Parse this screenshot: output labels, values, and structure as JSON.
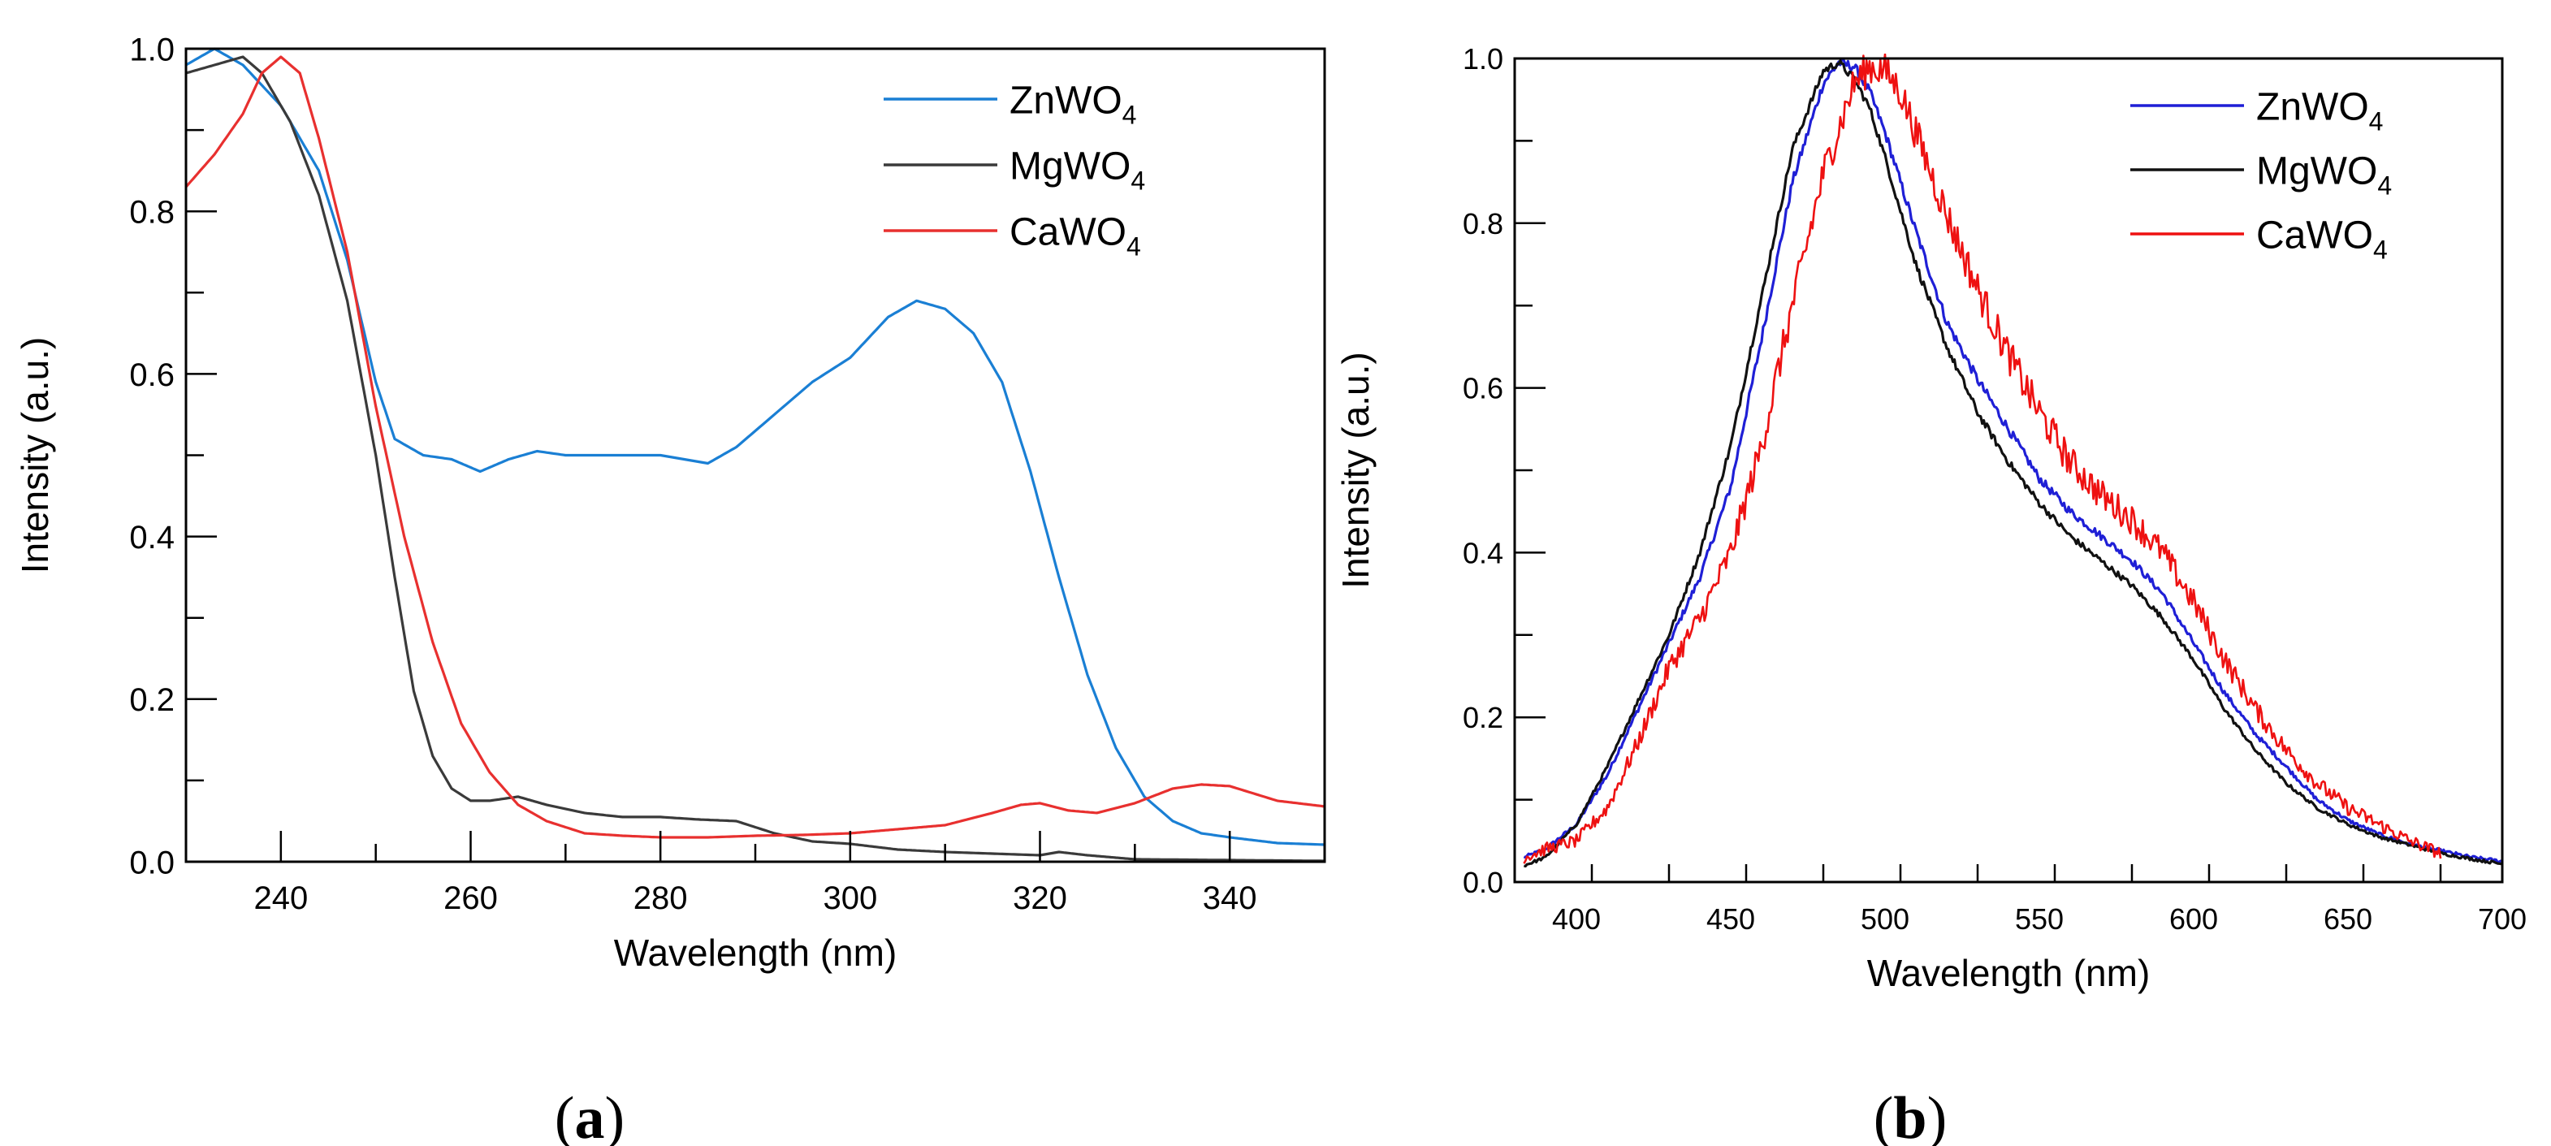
{
  "figure": {
    "panel_a_label": "a",
    "panel_b_label": "b"
  },
  "chart_data": [
    {
      "panel": "a",
      "type": "line",
      "title": "",
      "xlabel": "Wavelength (nm)",
      "ylabel": "Intensity (a.u.)",
      "xlim": [
        230,
        350
      ],
      "ylim": [
        0,
        1.0
      ],
      "xticks": [
        240,
        260,
        280,
        300,
        320,
        340
      ],
      "yticks": [
        0.0,
        0.2,
        0.4,
        0.6,
        0.8,
        1.0
      ],
      "tick_labels_x": [
        "240",
        "260",
        "280",
        "300",
        "320",
        "340"
      ],
      "tick_labels_y": [
        "0.0",
        "0.2",
        "0.4",
        "0.6",
        "0.8",
        "1.0"
      ],
      "grid": false,
      "legend_position": "top-right",
      "series": [
        {
          "name": "ZnWO4",
          "legend_main": "ZnWO",
          "legend_sub": "4",
          "color": "#1a7fd4",
          "x": [
            230,
            233,
            236,
            240,
            244,
            247,
            250,
            252,
            255,
            258,
            261,
            264,
            267,
            270,
            275,
            280,
            285,
            288,
            292,
            296,
            300,
            304,
            307,
            310,
            313,
            316,
            319,
            322,
            325,
            328,
            331,
            334,
            337,
            340,
            345,
            350
          ],
          "y": [
            0.98,
            1.0,
            0.98,
            0.93,
            0.85,
            0.74,
            0.59,
            0.52,
            0.5,
            0.495,
            0.48,
            0.495,
            0.505,
            0.5,
            0.5,
            0.5,
            0.49,
            0.51,
            0.55,
            0.59,
            0.62,
            0.67,
            0.69,
            0.68,
            0.65,
            0.59,
            0.48,
            0.35,
            0.23,
            0.14,
            0.08,
            0.05,
            0.035,
            0.03,
            0.023,
            0.021
          ]
        },
        {
          "name": "MgWO4",
          "legend_main": "MgWO",
          "legend_sub": "4",
          "color": "#3a3a3a",
          "x": [
            230,
            233,
            236,
            238,
            241,
            244,
            247,
            250,
            252,
            254,
            256,
            258,
            260,
            262,
            265,
            268,
            272,
            276,
            280,
            284,
            288,
            292,
            296,
            300,
            305,
            310,
            315,
            320,
            322,
            325,
            330,
            340,
            350
          ],
          "y": [
            0.97,
            0.98,
            0.99,
            0.97,
            0.91,
            0.82,
            0.69,
            0.5,
            0.35,
            0.21,
            0.13,
            0.09,
            0.075,
            0.075,
            0.08,
            0.07,
            0.06,
            0.055,
            0.055,
            0.052,
            0.05,
            0.035,
            0.025,
            0.022,
            0.015,
            0.012,
            0.01,
            0.008,
            0.012,
            0.008,
            0.003,
            0.002,
            0.001
          ]
        },
        {
          "name": "CaWO4",
          "legend_main": "CaWO",
          "legend_sub": "4",
          "color": "#e8302f",
          "x": [
            230,
            233,
            236,
            238,
            240,
            242,
            244,
            247,
            250,
            253,
            256,
            259,
            262,
            265,
            268,
            272,
            276,
            280,
            285,
            290,
            295,
            300,
            305,
            310,
            315,
            318,
            320,
            323,
            326,
            330,
            334,
            337,
            340,
            345,
            350
          ],
          "y": [
            0.83,
            0.87,
            0.92,
            0.97,
            0.99,
            0.97,
            0.89,
            0.75,
            0.56,
            0.4,
            0.27,
            0.17,
            0.11,
            0.07,
            0.05,
            0.035,
            0.032,
            0.03,
            0.03,
            0.032,
            0.033,
            0.035,
            0.04,
            0.045,
            0.06,
            0.07,
            0.072,
            0.063,
            0.06,
            0.072,
            0.09,
            0.095,
            0.093,
            0.075,
            0.068
          ]
        }
      ]
    },
    {
      "panel": "b",
      "type": "line",
      "title": "",
      "xlabel": "Wavelength (nm)",
      "ylabel": "Intensity (a.u.)",
      "xlim": [
        380,
        700
      ],
      "ylim": [
        0,
        1.0
      ],
      "xticks": [
        400,
        450,
        500,
        550,
        600,
        650,
        700
      ],
      "yticks": [
        0.0,
        0.2,
        0.4,
        0.6,
        0.8,
        1.0
      ],
      "tick_labels_x": [
        "400",
        "450",
        "500",
        "550",
        "600",
        "650",
        "700"
      ],
      "tick_labels_y": [
        "0.0",
        "0.2",
        "0.4",
        "0.6",
        "0.8",
        "1.0"
      ],
      "grid": false,
      "legend_position": "top-right",
      "series": [
        {
          "name": "ZnWO4",
          "legend_main": "ZnWO",
          "legend_sub": "4",
          "color": "#1f1fd6",
          "noise": 0.006,
          "x": [
            383,
            390,
            400,
            410,
            420,
            430,
            440,
            450,
            460,
            470,
            480,
            485,
            490,
            495,
            500,
            510,
            520,
            530,
            540,
            550,
            560,
            570,
            580,
            590,
            600,
            610,
            620,
            630,
            640,
            650,
            660,
            670,
            680,
            690,
            700
          ],
          "y": [
            0.03,
            0.04,
            0.07,
            0.13,
            0.21,
            0.29,
            0.37,
            0.48,
            0.66,
            0.85,
            0.97,
            0.995,
            0.99,
            0.96,
            0.91,
            0.79,
            0.68,
            0.61,
            0.55,
            0.49,
            0.45,
            0.42,
            0.39,
            0.35,
            0.29,
            0.23,
            0.18,
            0.14,
            0.1,
            0.075,
            0.058,
            0.046,
            0.038,
            0.03,
            0.025
          ]
        },
        {
          "name": "MgWO4",
          "legend_main": "MgWO",
          "legend_sub": "4",
          "color": "#111111",
          "noise": 0.005,
          "x": [
            383,
            390,
            400,
            410,
            420,
            430,
            440,
            450,
            460,
            470,
            480,
            485,
            490,
            495,
            500,
            510,
            520,
            530,
            540,
            550,
            560,
            570,
            580,
            590,
            600,
            610,
            620,
            630,
            640,
            650,
            660,
            670,
            680,
            690,
            700
          ],
          "y": [
            0.02,
            0.03,
            0.07,
            0.14,
            0.22,
            0.3,
            0.4,
            0.53,
            0.71,
            0.89,
            0.985,
            0.995,
            0.975,
            0.94,
            0.88,
            0.75,
            0.65,
            0.57,
            0.51,
            0.46,
            0.42,
            0.39,
            0.36,
            0.32,
            0.27,
            0.21,
            0.16,
            0.12,
            0.09,
            0.07,
            0.055,
            0.045,
            0.035,
            0.028,
            0.022
          ]
        },
        {
          "name": "CaWO4",
          "legend_main": "CaWO",
          "legend_sub": "4",
          "color": "#ee1111",
          "noise": 0.022,
          "x": [
            383,
            390,
            400,
            410,
            420,
            430,
            440,
            450,
            460,
            470,
            480,
            490,
            495,
            500,
            505,
            510,
            520,
            530,
            540,
            550,
            560,
            570,
            580,
            590,
            600,
            610,
            620,
            630,
            640,
            650,
            660,
            670,
            680
          ],
          "y": [
            0.03,
            0.04,
            0.05,
            0.09,
            0.17,
            0.26,
            0.32,
            0.4,
            0.53,
            0.7,
            0.86,
            0.97,
            0.99,
            0.985,
            0.96,
            0.91,
            0.81,
            0.72,
            0.64,
            0.57,
            0.51,
            0.47,
            0.44,
            0.4,
            0.34,
            0.27,
            0.21,
            0.16,
            0.12,
            0.09,
            0.07,
            0.05,
            0.035
          ]
        }
      ]
    }
  ]
}
